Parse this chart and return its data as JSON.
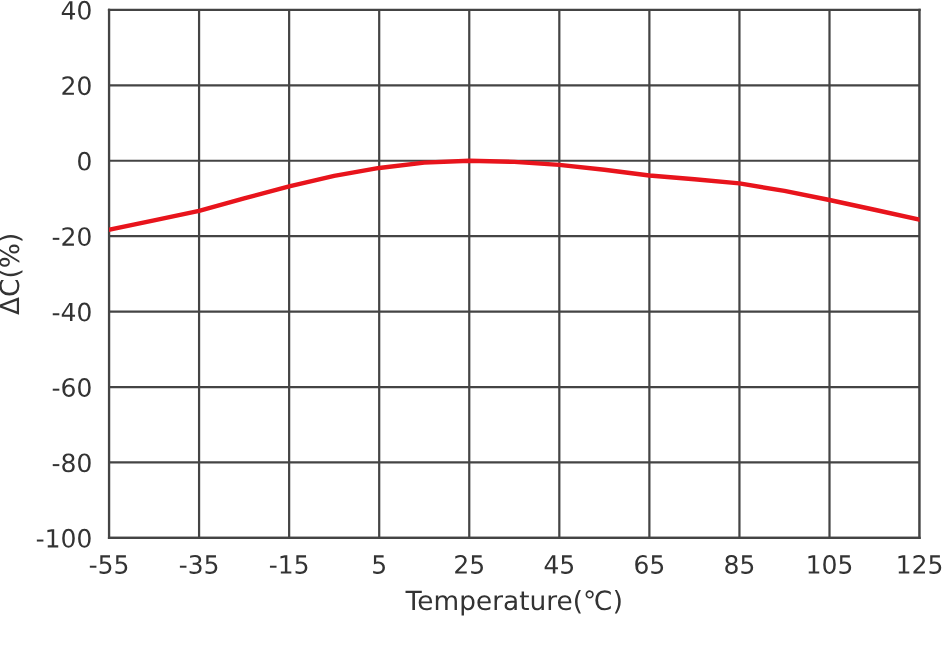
{
  "chart_data": {
    "type": "line",
    "xlabel": "Temperature(℃)",
    "ylabel": "ΔC(%)",
    "x": [
      -55,
      -45,
      -35,
      -25,
      -15,
      -5,
      5,
      15,
      25,
      35,
      45,
      55,
      65,
      75,
      85,
      95,
      105,
      115,
      125
    ],
    "series": [
      {
        "color": "#e8141c",
        "values": [
          -18.3,
          -15.8,
          -13.3,
          -10,
          -6.8,
          -4,
          -1.9,
          -0.5,
          0,
          -0.3,
          -1.1,
          -2.4,
          -3.9,
          -4.9,
          -6,
          -8,
          -10.4,
          -13,
          -15.6
        ]
      }
    ],
    "xlim": [
      -55,
      125
    ],
    "ylim": [
      -100,
      40
    ],
    "xticks": [
      -55,
      -35,
      -15,
      5,
      25,
      45,
      65,
      85,
      105,
      125
    ],
    "yticks": [
      -100,
      -80,
      -60,
      -40,
      -20,
      0,
      20,
      40
    ],
    "grid": true,
    "marker": "none",
    "line_style": "solid"
  }
}
